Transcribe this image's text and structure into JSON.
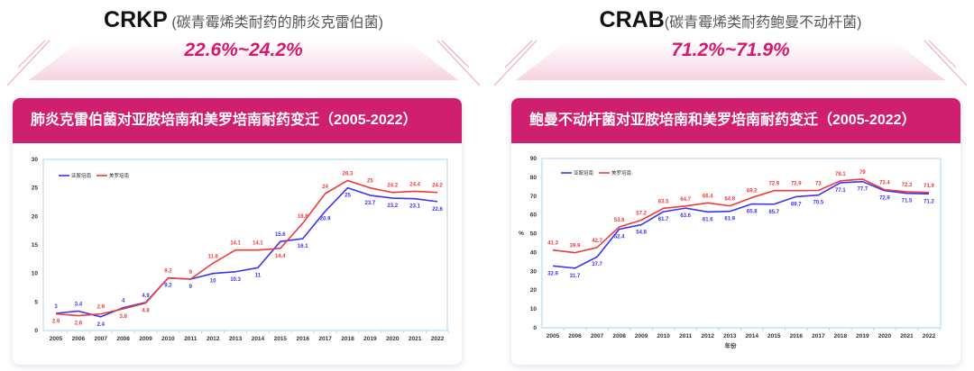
{
  "panels": [
    {
      "abbr": "CRKP",
      "subtitle": "(碳青霉烯类耐药的肺炎克雷伯菌)",
      "range": "22.6%~24.2%",
      "card_title": "肺炎克雷伯菌对亚胺培南和美罗培南耐药变迁（2005-2022）"
    },
    {
      "abbr": "CRAB",
      "subtitle": "(碳青霉烯类耐药鲍曼不动杆菌)",
      "range": "71.2%~71.9%",
      "card_title": "鲍曼不动杆菌对亚胺培南和美罗培南耐药变迁（2005-2022）"
    }
  ],
  "chart_data": [
    {
      "type": "line",
      "title": "肺炎克雷伯菌对亚胺培南和美罗培南耐药变迁（2005-2022）",
      "xlabel": "",
      "ylabel": "",
      "ylim": [
        0,
        30
      ],
      "yticks": [
        0,
        5,
        10,
        15,
        20,
        25,
        30
      ],
      "legend": "top-left",
      "categories": [
        "2005",
        "2006",
        "2007",
        "2008",
        "2009",
        "2010",
        "2011",
        "2012",
        "2013",
        "2014",
        "2015",
        "2016",
        "2017",
        "2018",
        "2019",
        "2020",
        "2021",
        "2022"
      ],
      "series": [
        {
          "name": "亚胺培南",
          "color": "#3b33f0",
          "values": [
            3,
            3.4,
            2.4,
            4,
            4.9,
            9.2,
            9,
            10,
            10.3,
            11,
            15.6,
            16.1,
            20.9,
            25,
            23.7,
            23.2,
            23.1,
            22.6
          ]
        },
        {
          "name": "美罗培南",
          "color": "#f03a3a",
          "values": [
            2.9,
            2.6,
            2.9,
            3.8,
            4.8,
            9.2,
            9,
            11.8,
            14.1,
            14.1,
            14.4,
            18.8,
            24,
            26.3,
            25,
            24.2,
            24.4,
            24.2
          ]
        }
      ]
    },
    {
      "type": "line",
      "title": "鲍曼不动杆菌对亚胺培南和美罗培南耐药变迁（2005-2022）",
      "xlabel": "年份",
      "ylabel": "%",
      "ylim": [
        0,
        90
      ],
      "yticks": [
        0,
        10,
        20,
        30,
        40,
        50,
        60,
        70,
        80,
        90
      ],
      "legend": "top-left",
      "categories": [
        "2005",
        "2006",
        "2007",
        "2008",
        "2009",
        "2010",
        "2011",
        "2012",
        "2013",
        "2014",
        "2015",
        "2016",
        "2017",
        "2018",
        "2019",
        "2020",
        "2021",
        "2022"
      ],
      "series": [
        {
          "name": "亚胺培南",
          "color": "#3b33f0",
          "values": [
            32.9,
            31.7,
            37.7,
            52.4,
            54.8,
            61.7,
            63.6,
            61.6,
            61.9,
            65.8,
            65.7,
            69.7,
            70.5,
            77.1,
            77.7,
            72.9,
            71.5,
            71.2
          ]
        },
        {
          "name": "美罗培南",
          "color": "#f03a3a",
          "values": [
            41.3,
            39.9,
            42.7,
            53.6,
            57.2,
            63.5,
            64.7,
            66.4,
            64.8,
            69.2,
            72.9,
            72.9,
            73,
            78.1,
            79,
            73.4,
            72.3,
            71.9
          ]
        }
      ]
    }
  ]
}
